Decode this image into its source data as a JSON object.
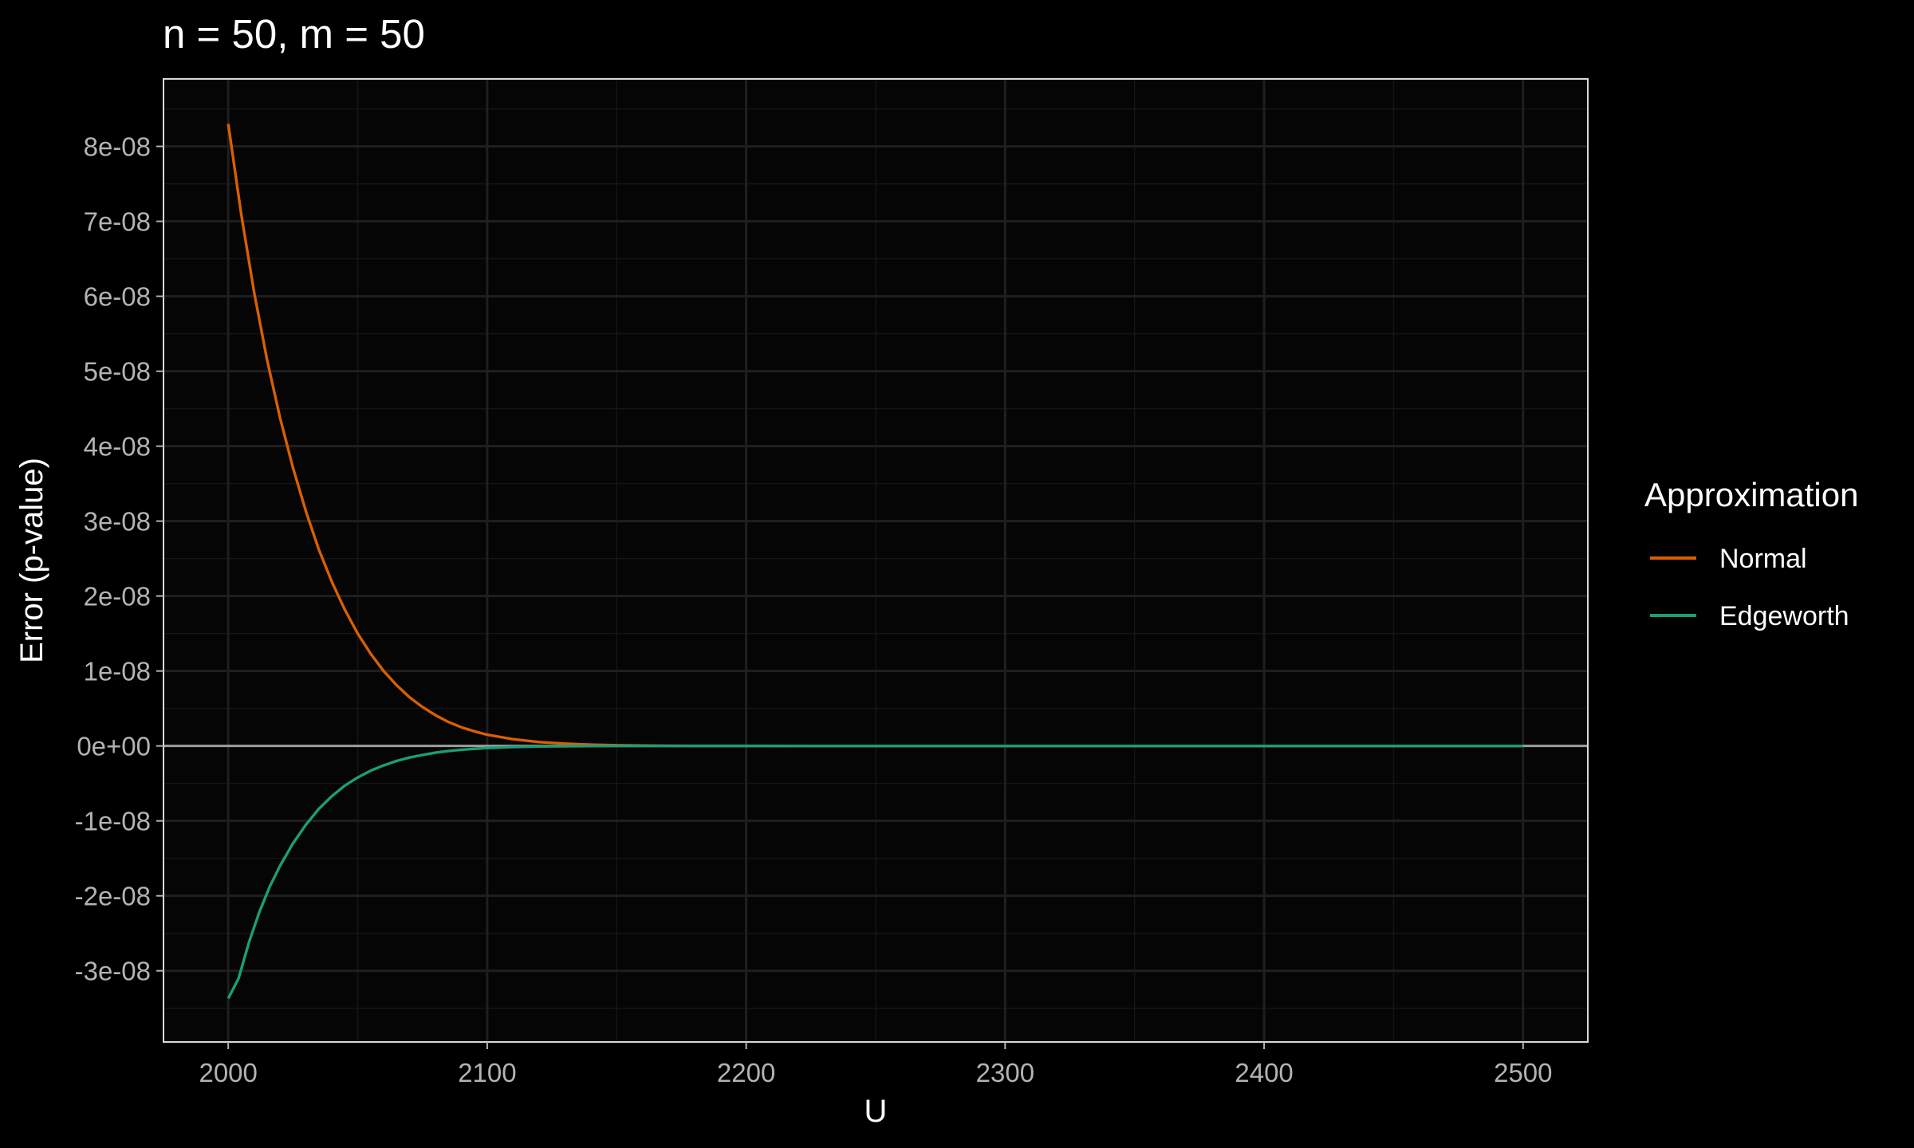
{
  "chart_data": {
    "type": "line",
    "title": "n = 50, m = 50",
    "xlabel": "U",
    "ylabel": "Error (p-value)",
    "xlim": [
      1975,
      2525
    ],
    "ylim": [
      -3.95e-08,
      8.9e-08
    ],
    "x_ticks": [
      2000,
      2100,
      2200,
      2300,
      2400,
      2500
    ],
    "x_tick_labels": [
      "2000",
      "2100",
      "2200",
      "2300",
      "2400",
      "2500"
    ],
    "y_ticks": [
      -3e-08,
      -2e-08,
      -1e-08,
      0,
      1e-08,
      2e-08,
      3e-08,
      4e-08,
      5e-08,
      6e-08,
      7e-08,
      8e-08
    ],
    "y_tick_labels": [
      "-3e-08",
      "-2e-08",
      "-1e-08",
      "0e+00",
      "1e-08",
      "2e-08",
      "3e-08",
      "4e-08",
      "5e-08",
      "6e-08",
      "7e-08",
      "8e-08"
    ],
    "grid": true,
    "reference_line_y": 0,
    "legend": {
      "title": "Approximation",
      "position": "right"
    },
    "series": [
      {
        "name": "Normal",
        "color": "#D95F02",
        "x": [
          2000,
          2005,
          2010,
          2015,
          2020,
          2025,
          2030,
          2035,
          2040,
          2045,
          2050,
          2055,
          2060,
          2065,
          2070,
          2075,
          2080,
          2085,
          2090,
          2095,
          2100,
          2110,
          2120,
          2130,
          2140,
          2150,
          2160,
          2170,
          2180,
          2190,
          2200,
          2250,
          2300,
          2350,
          2400,
          2450,
          2500
        ],
        "y": [
          8.3e-08,
          7.1e-08,
          6.05e-08,
          5.15e-08,
          4.38e-08,
          3.71e-08,
          3.13e-08,
          2.62e-08,
          2.19e-08,
          1.82e-08,
          1.5e-08,
          1.23e-08,
          1e-08,
          8.1e-09,
          6.5e-09,
          5.2e-09,
          4.1e-09,
          3.2e-09,
          2.5e-09,
          1.95e-09,
          1.5e-09,
          9e-10,
          5.2e-10,
          3e-10,
          1.7e-10,
          9e-11,
          5e-11,
          2.5e-11,
          1.2e-11,
          6e-12,
          3e-12,
          0,
          0,
          0,
          0,
          0,
          0
        ]
      },
      {
        "name": "Edgeworth",
        "color": "#1B9E77",
        "x": [
          2000,
          2004,
          2008,
          2012,
          2016,
          2020,
          2025,
          2030,
          2035,
          2040,
          2045,
          2050,
          2055,
          2060,
          2065,
          2070,
          2075,
          2080,
          2085,
          2090,
          2100,
          2110,
          2120,
          2130,
          2140,
          2150,
          2160,
          2170,
          2180,
          2190,
          2200,
          2250,
          2300,
          2350,
          2400,
          2450,
          2500
        ],
        "y": [
          -3.37e-08,
          -3.1e-08,
          -2.62e-08,
          -2.22e-08,
          -1.88e-08,
          -1.6e-08,
          -1.3e-08,
          -1.05e-08,
          -8.4e-09,
          -6.7e-09,
          -5.3e-09,
          -4.2e-09,
          -3.3e-09,
          -2.6e-09,
          -2e-09,
          -1.55e-09,
          -1.2e-09,
          -9e-10,
          -6.8e-10,
          -5e-10,
          -2.7e-10,
          -1.4e-10,
          -7e-11,
          -3.5e-11,
          -1.7e-11,
          -8e-12,
          -4e-12,
          -2e-12,
          -1e-12,
          0,
          0,
          0,
          0,
          0,
          0,
          0,
          0
        ]
      }
    ]
  }
}
